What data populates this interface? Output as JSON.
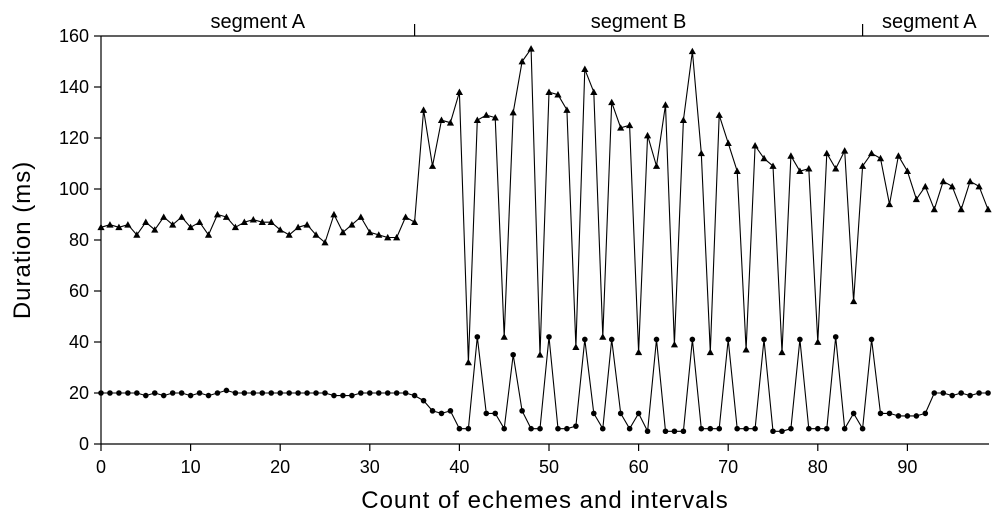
{
  "chart_data": {
    "type": "line",
    "title": "",
    "xlabel": "Count of echemes and intervals",
    "ylabel": "Duration (ms)",
    "xlim": [
      0,
      99
    ],
    "ylim": [
      0,
      160
    ],
    "xticks": [
      0,
      10,
      20,
      30,
      40,
      50,
      60,
      70,
      80,
      90
    ],
    "yticks": [
      0,
      20,
      40,
      60,
      80,
      100,
      120,
      140,
      160
    ],
    "grid": false,
    "legend": "none",
    "segments": [
      {
        "label": "segment A",
        "x_start": 0,
        "x_end": 35
      },
      {
        "label": "segment B",
        "x_start": 35,
        "x_end": 85
      },
      {
        "label": "segment A",
        "x_start": 85,
        "x_end": 99
      }
    ],
    "segment_boundaries": [
      35,
      85
    ],
    "series": [
      {
        "marker": "triangle",
        "color": "#000000",
        "x": [
          0,
          1,
          2,
          3,
          4,
          5,
          6,
          7,
          8,
          9,
          10,
          11,
          12,
          13,
          14,
          15,
          16,
          17,
          18,
          19,
          20,
          21,
          22,
          23,
          24,
          25,
          26,
          27,
          28,
          29,
          30,
          31,
          32,
          33,
          34,
          35,
          36,
          37,
          38,
          39,
          40,
          41,
          42,
          43,
          44,
          45,
          46,
          47,
          48,
          49,
          50,
          51,
          52,
          53,
          54,
          55,
          56,
          57,
          58,
          59,
          60,
          61,
          62,
          63,
          64,
          65,
          66,
          67,
          68,
          69,
          70,
          71,
          72,
          73,
          74,
          75,
          76,
          77,
          78,
          79,
          80,
          81,
          82,
          83,
          84,
          85,
          86,
          87,
          88,
          89,
          90,
          91,
          92,
          93,
          94,
          95,
          96,
          97,
          98,
          99
        ],
        "values": [
          85,
          86,
          85,
          86,
          82,
          87,
          84,
          89,
          86,
          89,
          85,
          87,
          82,
          90,
          89,
          85,
          87,
          88,
          87,
          87,
          84,
          82,
          85,
          86,
          82,
          79,
          90,
          83,
          86,
          89,
          83,
          82,
          81,
          81,
          89,
          87,
          131,
          109,
          127,
          126,
          138,
          32,
          127,
          129,
          128,
          42,
          130,
          150,
          155,
          35,
          138,
          137,
          131,
          38,
          147,
          138,
          42,
          134,
          124,
          125,
          36,
          121,
          109,
          133,
          39,
          127,
          154,
          114,
          36,
          129,
          118,
          107,
          37,
          117,
          112,
          109,
          36,
          113,
          107,
          108,
          40,
          114,
          108,
          115,
          56,
          109,
          114,
          112,
          94,
          113,
          107,
          96,
          101,
          92,
          103,
          101,
          92,
          103,
          101,
          92
        ]
      },
      {
        "marker": "circle",
        "color": "#000000",
        "x": [
          0,
          1,
          2,
          3,
          4,
          5,
          6,
          7,
          8,
          9,
          10,
          11,
          12,
          13,
          14,
          15,
          16,
          17,
          18,
          19,
          20,
          21,
          22,
          23,
          24,
          25,
          26,
          27,
          28,
          29,
          30,
          31,
          32,
          33,
          34,
          35,
          36,
          37,
          38,
          39,
          40,
          41,
          42,
          43,
          44,
          45,
          46,
          47,
          48,
          49,
          50,
          51,
          52,
          53,
          54,
          55,
          56,
          57,
          58,
          59,
          60,
          61,
          62,
          63,
          64,
          65,
          66,
          67,
          68,
          69,
          70,
          71,
          72,
          73,
          74,
          75,
          76,
          77,
          78,
          79,
          80,
          81,
          82,
          83,
          84,
          85,
          86,
          87,
          88,
          89,
          90,
          91,
          92,
          93,
          94,
          95,
          96,
          97,
          98,
          99
        ],
        "values": [
          20,
          20,
          20,
          20,
          20,
          19,
          20,
          19,
          20,
          20,
          19,
          20,
          19,
          20,
          21,
          20,
          20,
          20,
          20,
          20,
          20,
          20,
          20,
          20,
          20,
          20,
          19,
          19,
          19,
          20,
          20,
          20,
          20,
          20,
          20,
          19,
          17,
          13,
          12,
          13,
          6,
          6,
          42,
          12,
          12,
          6,
          35,
          13,
          6,
          6,
          42,
          6,
          6,
          7,
          41,
          12,
          6,
          41,
          12,
          6,
          12,
          5,
          41,
          5,
          5,
          5,
          41,
          6,
          6,
          6,
          41,
          6,
          6,
          6,
          41,
          5,
          5,
          6,
          41,
          6,
          6,
          6,
          42,
          6,
          12,
          6,
          41,
          12,
          12,
          11,
          11,
          11,
          12,
          20,
          20,
          19,
          20,
          19,
          20,
          20
        ]
      }
    ]
  }
}
